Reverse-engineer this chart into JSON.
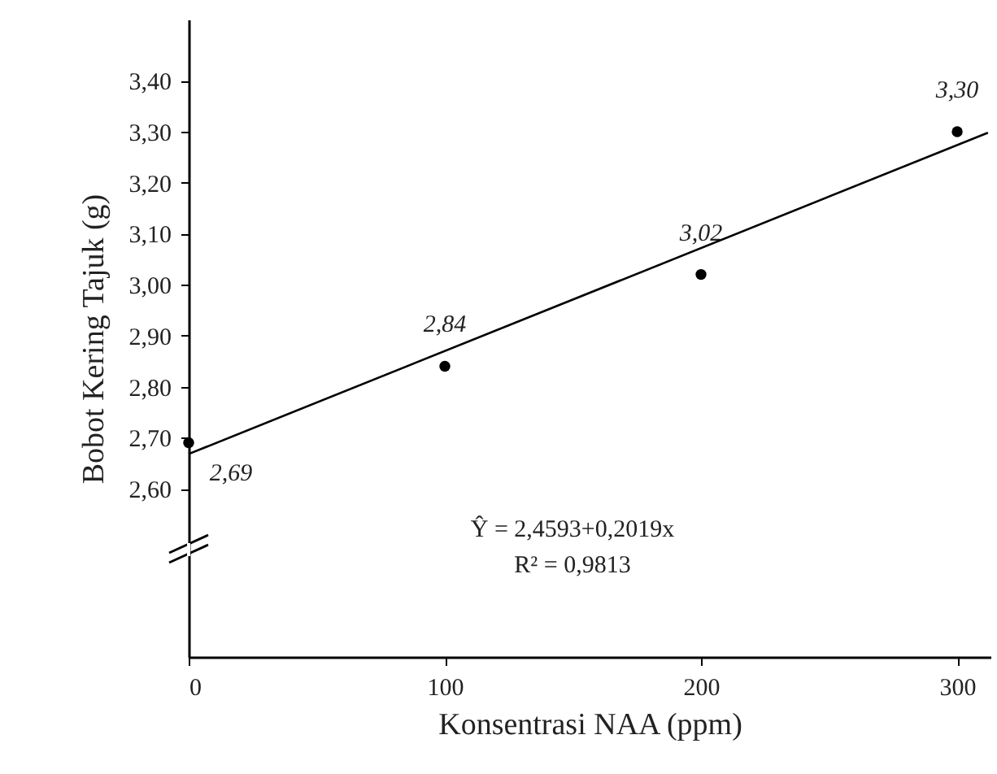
{
  "chart_data": {
    "type": "scatter",
    "xlabel": "Konsentrasi  NAA (ppm)",
    "ylabel": "Bobot Kering Tajuk (g)",
    "x": [
      0,
      100,
      200,
      300
    ],
    "series": [
      {
        "color": "#000000",
        "marker": "circle",
        "values": [
          2.69,
          2.84,
          3.02,
          3.3
        ],
        "value_labels": [
          "2,69",
          "2,84",
          "3,02",
          "3,30"
        ]
      },
      {
        "type": "line",
        "marker": "none",
        "color": "#000000",
        "x": [
          0,
          312
        ],
        "values": [
          2.668,
          3.298
        ]
      }
    ],
    "xlim": [
      0,
      313
    ],
    "xticks": [
      0,
      100,
      200,
      300
    ],
    "ylim": [
      2.27,
      3.52
    ],
    "yticks": [
      {
        "value": 2.6,
        "label": "2,60"
      },
      {
        "value": 2.7,
        "label": "2,70"
      },
      {
        "value": 2.8,
        "label": "2,80"
      },
      {
        "value": 2.9,
        "label": "2,90"
      },
      {
        "value": 3.0,
        "label": "3,00"
      },
      {
        "value": 3.1,
        "label": "3,10"
      },
      {
        "value": 3.2,
        "label": "3,20"
      },
      {
        "value": 3.3,
        "label": "3,30"
      },
      {
        "value": 3.4,
        "label": "3,40"
      }
    ],
    "annotations": [
      "Ŷ = 2,4593+0,2019x",
      "R² = 0,9813"
    ],
    "grid": false
  }
}
